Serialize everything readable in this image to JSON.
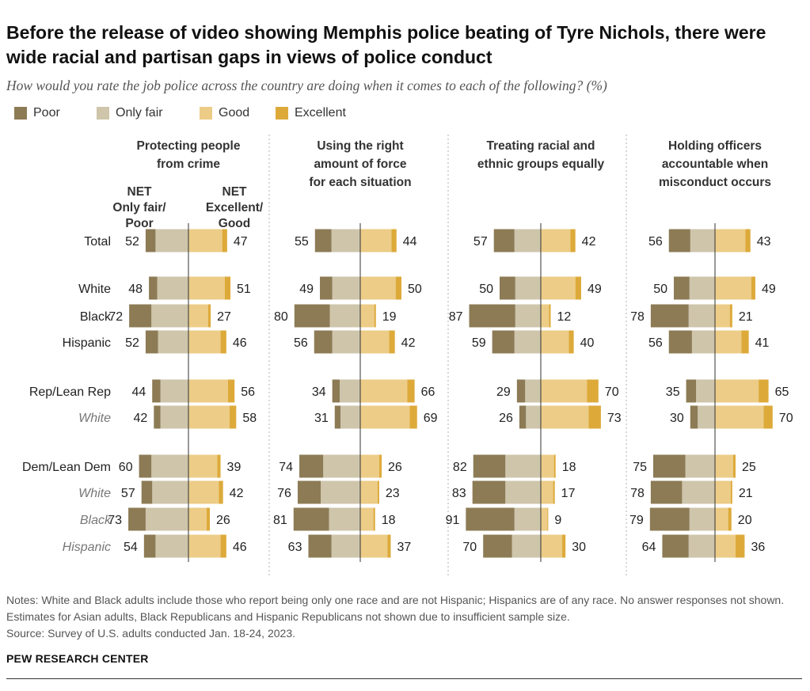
{
  "title": "Before the release of video showing Memphis police beating of Tyre Nichols, there were wide racial and partisan gaps in views of police conduct",
  "subtitle": "How would you rate the job police across the country are doing when it comes to each of the following? (%)",
  "legend": [
    {
      "label": "Poor",
      "color": "#8c7b55"
    },
    {
      "label": "Only fair",
      "color": "#cec5ab"
    },
    {
      "label": "Good",
      "color": "#eccc87"
    },
    {
      "label": "Excellent",
      "color": "#ddaa3a"
    }
  ],
  "column_headers": {
    "net_left": [
      "NET",
      "Only fair/",
      "Poor"
    ],
    "net_right": [
      "NET",
      "Excellent/",
      "Good"
    ]
  },
  "colors": {
    "poor": "#8c7b55",
    "only_fair": "#cec5ab",
    "good": "#eccc87",
    "excellent": "#ddaa3a",
    "axis": "#333333",
    "divider": "#b0b0b0",
    "label": "#222222",
    "sub_label": "#777777"
  },
  "notes": [
    "Notes: White and Black adults include those who report being only one race and are not Hispanic; Hispanics are of any race. No answer responses not shown. Estimates for Asian adults, Black Republicans and Hispanic Republicans not shown due to insufficient sample size.",
    "Source: Survey of U.S. adults conducted Jan. 18-24, 2023."
  ],
  "source_brand": "PEW RESEARCH CENTER",
  "chart_data": {
    "type": "bar",
    "subtype": "diverging-stacked-horizontal",
    "categories": [
      "Total",
      "White",
      "Black",
      "Hispanic",
      "Rep/Lean Rep",
      "White",
      "Dem/Lean Dem",
      "White",
      "Black",
      "Hispanic"
    ],
    "category_styles": [
      "main",
      "main",
      "main",
      "main",
      "main",
      "sub",
      "main",
      "sub",
      "sub",
      "sub"
    ],
    "series_order": [
      "Poor",
      "Only fair",
      "Good",
      "Excellent"
    ],
    "panels": [
      {
        "title": [
          "Protecting people",
          "from crime"
        ],
        "net_negative": [
          52,
          48,
          72,
          52,
          44,
          42,
          60,
          57,
          73,
          54
        ],
        "net_positive": [
          47,
          51,
          27,
          46,
          56,
          58,
          39,
          42,
          26,
          46
        ],
        "poor": [
          12,
          10,
          27,
          15,
          10,
          8,
          15,
          13,
          21,
          14
        ],
        "only_fair": [
          40,
          38,
          45,
          37,
          34,
          34,
          45,
          44,
          52,
          40
        ],
        "good": [
          41,
          44,
          24,
          39,
          48,
          50,
          35,
          37,
          22,
          39
        ],
        "excellent": [
          6,
          7,
          3,
          7,
          8,
          8,
          4,
          5,
          4,
          7
        ]
      },
      {
        "title": [
          "Using the right",
          "amount of force",
          "for each situation"
        ],
        "net_negative": [
          55,
          49,
          80,
          56,
          34,
          31,
          74,
          76,
          81,
          63
        ],
        "net_positive": [
          44,
          50,
          19,
          42,
          66,
          69,
          26,
          23,
          18,
          37
        ],
        "poor": [
          20,
          15,
          43,
          22,
          9,
          7,
          29,
          28,
          43,
          28
        ],
        "only_fair": [
          35,
          34,
          37,
          34,
          25,
          24,
          45,
          48,
          38,
          35
        ],
        "good": [
          38,
          43,
          17,
          35,
          57,
          60,
          23,
          21,
          16,
          33
        ],
        "excellent": [
          6,
          7,
          2,
          7,
          9,
          9,
          3,
          2,
          2,
          4
        ]
      },
      {
        "title": [
          "Treating racial and",
          "ethnic groups equally"
        ],
        "net_negative": [
          57,
          50,
          87,
          59,
          29,
          26,
          82,
          83,
          91,
          70
        ],
        "net_positive": [
          42,
          49,
          12,
          40,
          70,
          73,
          18,
          17,
          9,
          30
        ],
        "poor": [
          25,
          19,
          56,
          27,
          10,
          8,
          39,
          40,
          59,
          35
        ],
        "only_fair": [
          32,
          31,
          31,
          32,
          19,
          18,
          43,
          43,
          32,
          35
        ],
        "good": [
          36,
          42,
          10,
          34,
          56,
          58,
          16,
          15,
          8,
          26
        ],
        "excellent": [
          6,
          7,
          2,
          6,
          14,
          15,
          2,
          2,
          1,
          4
        ]
      },
      {
        "title": [
          "Holding officers",
          "accountable when",
          "misconduct occurs"
        ],
        "net_negative": [
          56,
          50,
          78,
          56,
          35,
          30,
          75,
          78,
          79,
          64
        ],
        "net_positive": [
          43,
          49,
          21,
          41,
          65,
          70,
          25,
          21,
          20,
          36
        ],
        "poor": [
          26,
          19,
          46,
          28,
          12,
          9,
          39,
          38,
          48,
          32
        ],
        "only_fair": [
          30,
          31,
          32,
          28,
          23,
          21,
          36,
          40,
          31,
          32
        ],
        "good": [
          37,
          44,
          18,
          32,
          53,
          59,
          22,
          19,
          16,
          25
        ],
        "excellent": [
          6,
          5,
          3,
          9,
          12,
          11,
          3,
          2,
          4,
          11
        ]
      }
    ]
  }
}
